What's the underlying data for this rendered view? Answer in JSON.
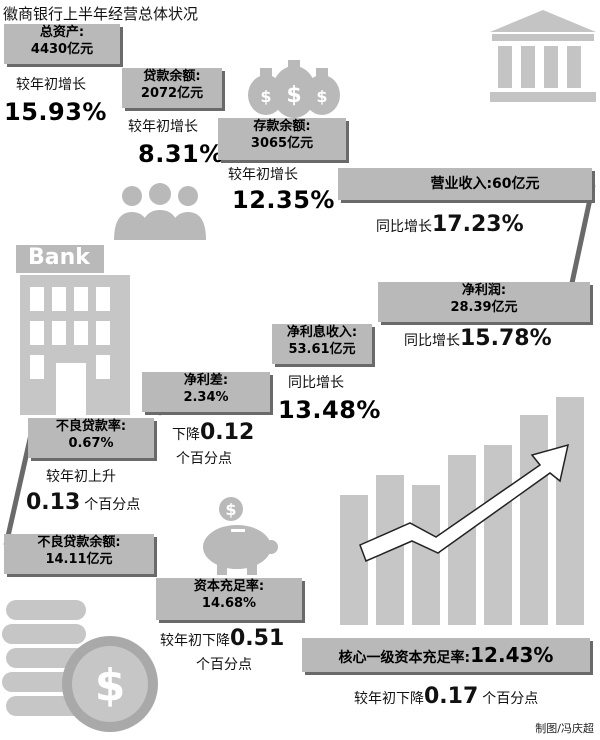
{
  "title": "徽商银行上半年经营总体状况",
  "credit": "制图/冯庆超",
  "icons": [
    "bank-building-icon",
    "money-bags-icon",
    "people-icon",
    "hand-coins-icon",
    "office-building-icon",
    "down-arrow-icon",
    "bar-chart-up-icon",
    "piggy-bank-icon",
    "coin-stack-icon"
  ],
  "bank_sign": "Bank",
  "colors": {
    "box": "#b9b9b9",
    "shadow": "#6a6a6a",
    "line": "#6a6a6a",
    "icon": "#c6c6c6"
  },
  "items": {
    "total_assets": {
      "head": "总资产:",
      "value": "4430亿元",
      "desc": "较年初增长",
      "num": "15.93%"
    },
    "loans": {
      "head": "贷款余额:",
      "value": "2072亿元",
      "desc": "较年初增长",
      "num": "8.31%"
    },
    "deposits": {
      "head": "存款余额:",
      "value": "3065亿元",
      "desc": "较年初增长",
      "num": "12.35%"
    },
    "revenue": {
      "head": "营业收入:60亿元",
      "desc": "同比增长",
      "num": "17.23%"
    },
    "net_profit": {
      "head": "净利润:",
      "value": "28.39亿元",
      "desc": "同比增长",
      "num": "15.78%"
    },
    "net_interest": {
      "head": "净利息收入:",
      "value": "53.61亿元",
      "desc": "同比增长",
      "num": "13.48%"
    },
    "net_spread": {
      "head": "净利差:",
      "value": "2.34%",
      "desc": "下降",
      "num": "0.12",
      "unit": "个百分点"
    },
    "npl_ratio": {
      "head": "不良贷款率:",
      "value": "0.67%",
      "desc": "较年初上升",
      "num": "0.13",
      "unit": "个百分点"
    },
    "npl_balance": {
      "head": "不良贷款余额:",
      "value": "14.11亿元"
    },
    "car": {
      "head": "资本充足率:",
      "value": "14.68%",
      "desc": "较年初下降",
      "num": "0.51",
      "unit": "个百分点"
    },
    "cet1": {
      "head": "核心一级资本充足率:",
      "num": "12.43%",
      "desc": "较年初下降",
      "num2": "0.17",
      "unit": "个百分点"
    }
  }
}
